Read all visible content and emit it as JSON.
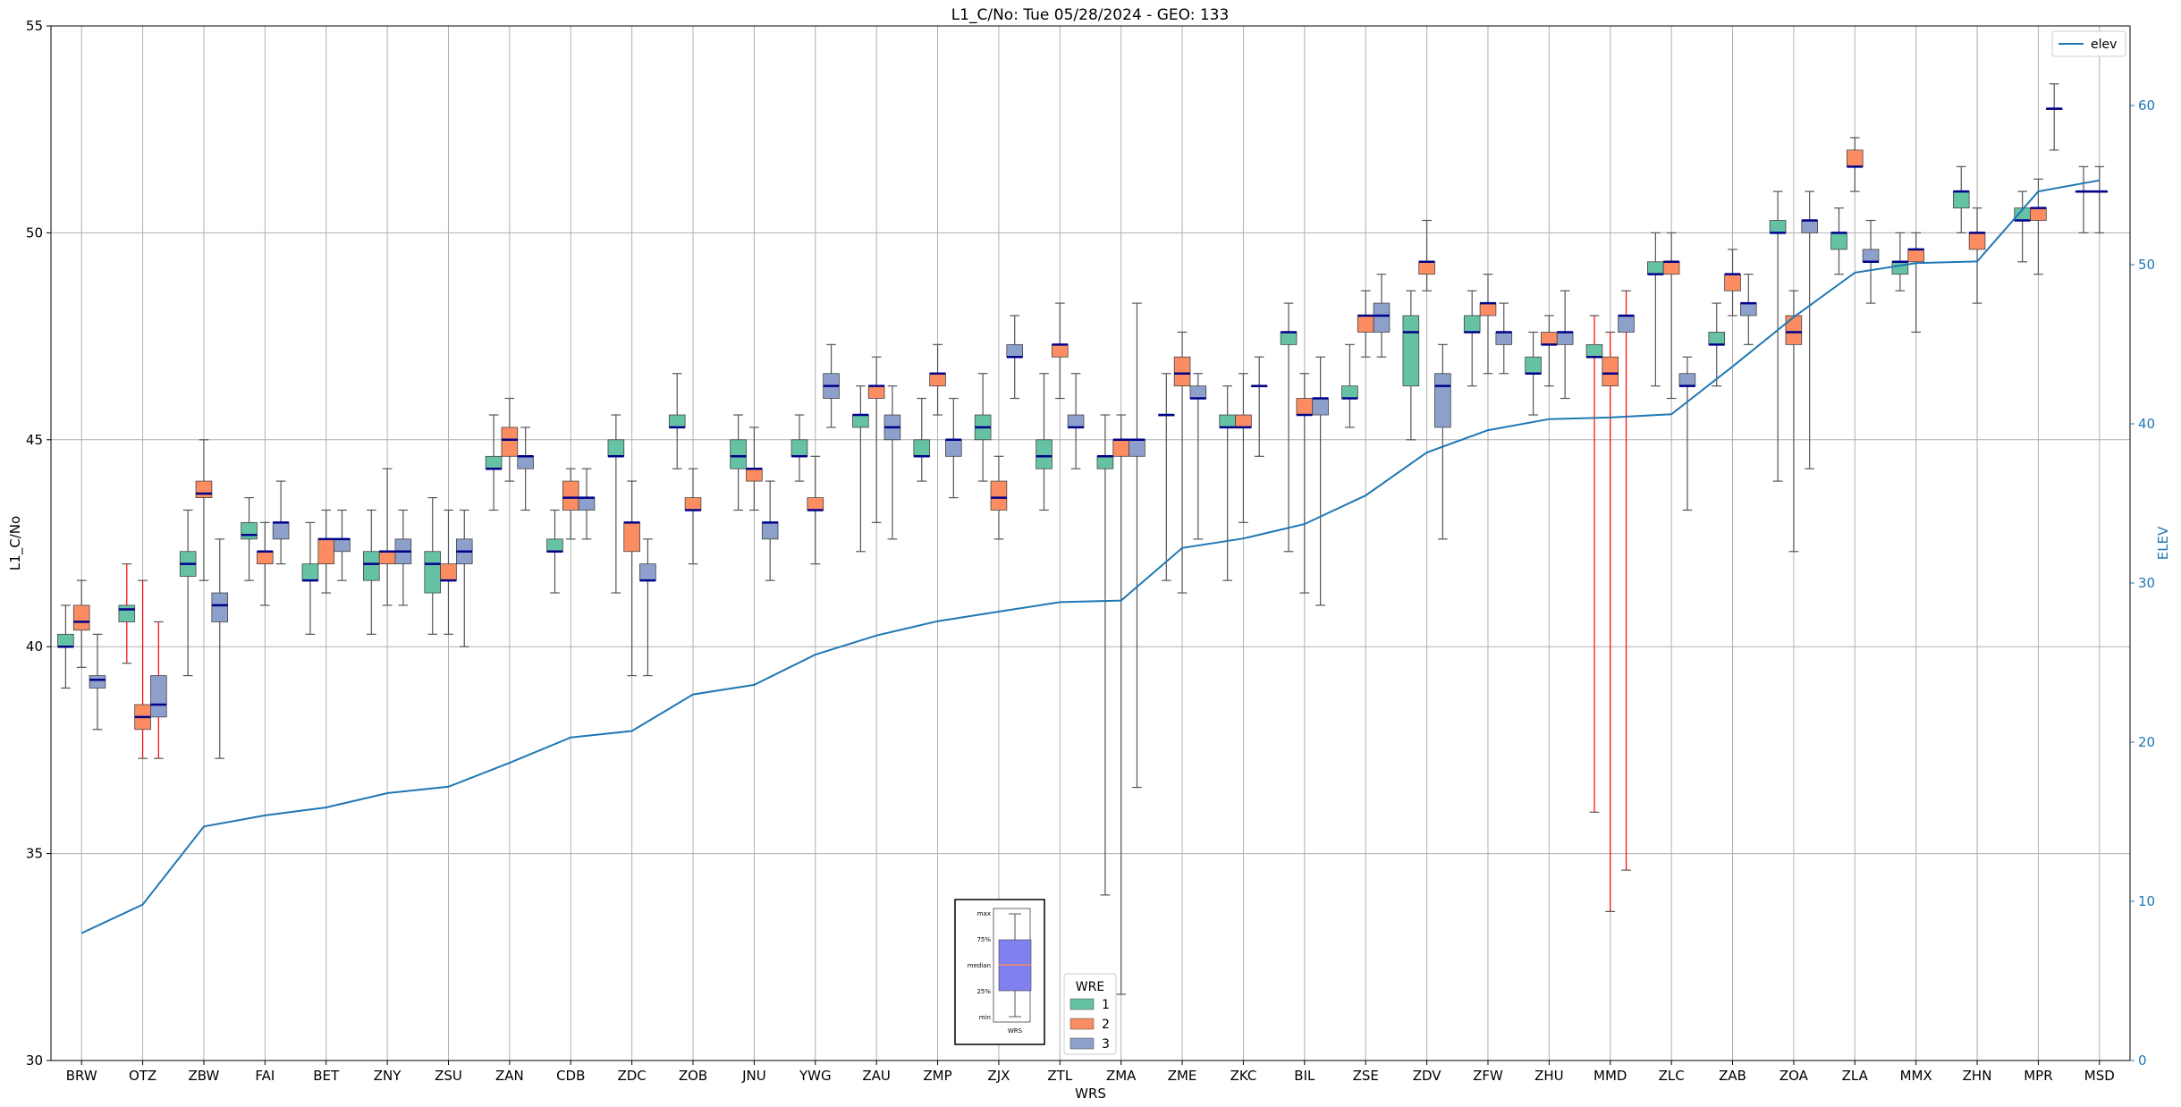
{
  "chart_data": {
    "type": "box",
    "title": "L1_C/No: Tue 05/28/2024 - GEO: 133",
    "xlabel": "WRS",
    "ylabel": "L1_C/No",
    "y2label": "ELEV",
    "ylim": [
      30,
      55
    ],
    "y2lim": [
      0,
      65
    ],
    "yticks": [
      30,
      35,
      40,
      45,
      50,
      55
    ],
    "y2ticks": [
      0,
      10,
      20,
      30,
      40,
      50,
      60
    ],
    "grid": true,
    "legend_placement": "upper-right",
    "categories": [
      "BRW",
      "OTZ",
      "ZBW",
      "FAI",
      "BET",
      "ZNY",
      "ZSU",
      "ZAN",
      "CDB",
      "ZDC",
      "ZOB",
      "JNU",
      "YWG",
      "ZAU",
      "ZMP",
      "ZJX",
      "ZTL",
      "ZMA",
      "ZME",
      "ZKC",
      "BIL",
      "ZSE",
      "ZDV",
      "ZFW",
      "ZHU",
      "MMD",
      "ZLC",
      "ZAB",
      "ZOA",
      "ZLA",
      "MMX",
      "ZHN",
      "MPR",
      "MSD"
    ],
    "wre_legend": {
      "title": "WRE",
      "items": [
        "1",
        "2",
        "3"
      ]
    },
    "colors": {
      "wre1": "#66c2a5",
      "wre2": "#fc8d62",
      "wre3": "#8da0cb",
      "median": "#00008b",
      "elev": "#1f77b4",
      "whisker": "#555555",
      "whisker_red": "#ff0000"
    },
    "elev_series": {
      "name": "elev",
      "values": [
        8,
        9.8,
        14.7,
        15.4,
        15.9,
        16.8,
        17.2,
        18.7,
        20.3,
        20.7,
        23,
        23.6,
        25.5,
        26.7,
        27.6,
        28.2,
        28.8,
        28.9,
        32.2,
        32.8,
        33.7,
        35.5,
        38.2,
        39.6,
        40.3,
        40.4,
        40.6,
        43.6,
        46.7,
        49.5,
        50.1,
        50.2,
        54.6,
        55.3
      ]
    },
    "boxes": [
      {
        "station": "BRW",
        "wre": 1,
        "min": 39,
        "q1": 40,
        "median": 40,
        "q3": 40.3,
        "max": 41
      },
      {
        "station": "BRW",
        "wre": 2,
        "min": 39.5,
        "q1": 40.4,
        "median": 40.6,
        "q3": 41,
        "max": 41.6
      },
      {
        "station": "BRW",
        "wre": 3,
        "min": 38,
        "q1": 39,
        "median": 39.2,
        "q3": 39.3,
        "max": 40.3
      },
      {
        "station": "OTZ",
        "wre": 1,
        "min": 39.6,
        "q1": 40.6,
        "median": 40.9,
        "q3": 41,
        "max": 42,
        "red": true
      },
      {
        "station": "OTZ",
        "wre": 2,
        "min": 37.3,
        "q1": 38,
        "median": 38.3,
        "q3": 38.6,
        "max": 41.6,
        "red": true
      },
      {
        "station": "OTZ",
        "wre": 3,
        "min": 37.3,
        "q1": 38.3,
        "median": 38.6,
        "q3": 39.3,
        "max": 40.6,
        "red": true
      },
      {
        "station": "ZBW",
        "wre": 1,
        "min": 39.3,
        "q1": 41.7,
        "median": 42,
        "q3": 42.3,
        "max": 43.3
      },
      {
        "station": "ZBW",
        "wre": 2,
        "min": 41.6,
        "q1": 43.6,
        "median": 43.7,
        "q3": 44,
        "max": 45
      },
      {
        "station": "ZBW",
        "wre": 3,
        "min": 37.3,
        "q1": 40.6,
        "median": 41,
        "q3": 41.3,
        "max": 42.6
      },
      {
        "station": "FAI",
        "wre": 1,
        "min": 41.6,
        "q1": 42.6,
        "median": 42.7,
        "q3": 43,
        "max": 43.6
      },
      {
        "station": "FAI",
        "wre": 2,
        "min": 41,
        "q1": 42,
        "median": 42.3,
        "q3": 42.3,
        "max": 43
      },
      {
        "station": "FAI",
        "wre": 3,
        "min": 42,
        "q1": 42.6,
        "median": 43,
        "q3": 43,
        "max": 44
      },
      {
        "station": "BET",
        "wre": 1,
        "min": 40.3,
        "q1": 41.6,
        "median": 41.6,
        "q3": 42,
        "max": 43
      },
      {
        "station": "BET",
        "wre": 2,
        "min": 41.3,
        "q1": 42,
        "median": 42.6,
        "q3": 42.6,
        "max": 43.3
      },
      {
        "station": "BET",
        "wre": 3,
        "min": 41.6,
        "q1": 42.3,
        "median": 42.6,
        "q3": 42.6,
        "max": 43.3
      },
      {
        "station": "ZNY",
        "wre": 1,
        "min": 40.3,
        "q1": 41.6,
        "median": 42,
        "q3": 42.3,
        "max": 43.3
      },
      {
        "station": "ZNY",
        "wre": 2,
        "min": 41,
        "q1": 42,
        "median": 42.3,
        "q3": 42.3,
        "max": 44.3
      },
      {
        "station": "ZNY",
        "wre": 3,
        "min": 41,
        "q1": 42,
        "median": 42.3,
        "q3": 42.6,
        "max": 43.3
      },
      {
        "station": "ZSU",
        "wre": 1,
        "min": 40.3,
        "q1": 41.3,
        "median": 42,
        "q3": 42.3,
        "max": 43.6
      },
      {
        "station": "ZSU",
        "wre": 2,
        "min": 40.3,
        "q1": 41.6,
        "median": 41.6,
        "q3": 42,
        "max": 43.3
      },
      {
        "station": "ZSU",
        "wre": 3,
        "min": 40,
        "q1": 42,
        "median": 42.3,
        "q3": 42.6,
        "max": 43.3
      },
      {
        "station": "ZAN",
        "wre": 1,
        "min": 43.3,
        "q1": 44.3,
        "median": 44.3,
        "q3": 44.6,
        "max": 45.6
      },
      {
        "station": "ZAN",
        "wre": 2,
        "min": 44,
        "q1": 44.6,
        "median": 45,
        "q3": 45.3,
        "max": 46
      },
      {
        "station": "ZAN",
        "wre": 3,
        "min": 43.3,
        "q1": 44.3,
        "median": 44.6,
        "q3": 44.6,
        "max": 45.3
      },
      {
        "station": "CDB",
        "wre": 1,
        "min": 41.3,
        "q1": 42.3,
        "median": 42.3,
        "q3": 42.6,
        "max": 43.3
      },
      {
        "station": "CDB",
        "wre": 2,
        "min": 42.6,
        "q1": 43.3,
        "median": 43.6,
        "q3": 44,
        "max": 44.3
      },
      {
        "station": "CDB",
        "wre": 3,
        "min": 42.6,
        "q1": 43.3,
        "median": 43.6,
        "q3": 43.6,
        "max": 44.3
      },
      {
        "station": "ZDC",
        "wre": 1,
        "min": 41.3,
        "q1": 44.6,
        "median": 44.6,
        "q3": 45,
        "max": 45.6
      },
      {
        "station": "ZDC",
        "wre": 2,
        "min": 39.3,
        "q1": 42.3,
        "median": 43,
        "q3": 43,
        "max": 44
      },
      {
        "station": "ZDC",
        "wre": 3,
        "min": 39.3,
        "q1": 41.6,
        "median": 41.6,
        "q3": 42,
        "max": 42.6
      },
      {
        "station": "ZOB",
        "wre": 1,
        "min": 44.3,
        "q1": 45.3,
        "median": 45.3,
        "q3": 45.6,
        "max": 46.6
      },
      {
        "station": "ZOB",
        "wre": 2,
        "min": 42,
        "q1": 43.3,
        "median": 43.3,
        "q3": 43.6,
        "max": 44.3
      },
      {
        "station": "JNU",
        "wre": 1,
        "min": 43.3,
        "q1": 44.3,
        "median": 44.6,
        "q3": 45,
        "max": 45.6
      },
      {
        "station": "JNU",
        "wre": 2,
        "min": 43.3,
        "q1": 44,
        "median": 44.3,
        "q3": 44.3,
        "max": 45.3
      },
      {
        "station": "JNU",
        "wre": 3,
        "min": 41.6,
        "q1": 42.6,
        "median": 43,
        "q3": 43,
        "max": 44
      },
      {
        "station": "YWG",
        "wre": 1,
        "min": 44,
        "q1": 44.6,
        "median": 44.6,
        "q3": 45,
        "max": 45.6
      },
      {
        "station": "YWG",
        "wre": 2,
        "min": 42,
        "q1": 43.3,
        "median": 43.3,
        "q3": 43.6,
        "max": 44.6
      },
      {
        "station": "YWG",
        "wre": 3,
        "min": 45.3,
        "q1": 46,
        "median": 46.3,
        "q3": 46.6,
        "max": 47.3
      },
      {
        "station": "ZAU",
        "wre": 1,
        "min": 42.3,
        "q1": 45.3,
        "median": 45.6,
        "q3": 45.6,
        "max": 46.3
      },
      {
        "station": "ZAU",
        "wre": 2,
        "min": 43,
        "q1": 46,
        "median": 46.3,
        "q3": 46.3,
        "max": 47
      },
      {
        "station": "ZAU",
        "wre": 3,
        "min": 42.6,
        "q1": 45,
        "median": 45.3,
        "q3": 45.6,
        "max": 46.3
      },
      {
        "station": "ZMP",
        "wre": 1,
        "min": 44,
        "q1": 44.6,
        "median": 44.6,
        "q3": 45,
        "max": 46
      },
      {
        "station": "ZMP",
        "wre": 2,
        "min": 45.6,
        "q1": 46.3,
        "median": 46.6,
        "q3": 46.6,
        "max": 47.3
      },
      {
        "station": "ZMP",
        "wre": 3,
        "min": 43.6,
        "q1": 44.6,
        "median": 45,
        "q3": 45,
        "max": 46
      },
      {
        "station": "ZJX",
        "wre": 1,
        "min": 44,
        "q1": 45,
        "median": 45.3,
        "q3": 45.6,
        "max": 46.6
      },
      {
        "station": "ZJX",
        "wre": 2,
        "min": 42.6,
        "q1": 43.3,
        "median": 43.6,
        "q3": 44,
        "max": 44.6
      },
      {
        "station": "ZJX",
        "wre": 3,
        "min": 46,
        "q1": 47,
        "median": 47,
        "q3": 47.3,
        "max": 48
      },
      {
        "station": "ZTL",
        "wre": 1,
        "min": 43.3,
        "q1": 44.3,
        "median": 44.6,
        "q3": 45,
        "max": 46.6
      },
      {
        "station": "ZTL",
        "wre": 2,
        "min": 46,
        "q1": 47,
        "median": 47.3,
        "q3": 47.3,
        "max": 48.3
      },
      {
        "station": "ZTL",
        "wre": 3,
        "min": 44.3,
        "q1": 45.3,
        "median": 45.3,
        "q3": 45.6,
        "max": 46.6
      },
      {
        "station": "ZMA",
        "wre": 1,
        "min": 34,
        "q1": 44.3,
        "median": 44.6,
        "q3": 44.6,
        "max": 45.6
      },
      {
        "station": "ZMA",
        "wre": 2,
        "min": 31.6,
        "q1": 44.6,
        "median": 45,
        "q3": 45,
        "max": 45.6
      },
      {
        "station": "ZMA",
        "wre": 3,
        "min": 36.6,
        "q1": 44.6,
        "median": 45,
        "q3": 45,
        "max": 48.3
      },
      {
        "station": "ZME",
        "wre": 1,
        "min": 41.6,
        "q1": 45.6,
        "median": 45.6,
        "q3": 45.6,
        "max": 46.6
      },
      {
        "station": "ZME",
        "wre": 2,
        "min": 41.3,
        "q1": 46.3,
        "median": 46.6,
        "q3": 47,
        "max": 47.6
      },
      {
        "station": "ZME",
        "wre": 3,
        "min": 42.6,
        "q1": 46,
        "median": 46,
        "q3": 46.3,
        "max": 46.6
      },
      {
        "station": "ZKC",
        "wre": 1,
        "min": 41.6,
        "q1": 45.3,
        "median": 45.3,
        "q3": 45.6,
        "max": 46.3
      },
      {
        "station": "ZKC",
        "wre": 2,
        "min": 43,
        "q1": 45.3,
        "median": 45.3,
        "q3": 45.6,
        "max": 46.6
      },
      {
        "station": "ZKC",
        "wre": 3,
        "min": 44.6,
        "q1": 46.3,
        "median": 46.3,
        "q3": 46.3,
        "max": 47
      },
      {
        "station": "BIL",
        "wre": 1,
        "min": 42.3,
        "q1": 47.3,
        "median": 47.6,
        "q3": 47.6,
        "max": 48.3
      },
      {
        "station": "BIL",
        "wre": 2,
        "min": 41.3,
        "q1": 45.6,
        "median": 45.6,
        "q3": 46,
        "max": 46.6
      },
      {
        "station": "BIL",
        "wre": 3,
        "min": 41,
        "q1": 45.6,
        "median": 46,
        "q3": 46,
        "max": 47
      },
      {
        "station": "ZSE",
        "wre": 1,
        "min": 45.3,
        "q1": 46,
        "median": 46,
        "q3": 46.3,
        "max": 47.3
      },
      {
        "station": "ZSE",
        "wre": 2,
        "min": 47,
        "q1": 47.6,
        "median": 48,
        "q3": 48,
        "max": 48.6
      },
      {
        "station": "ZSE",
        "wre": 3,
        "min": 47,
        "q1": 47.6,
        "median": 48,
        "q3": 48.3,
        "max": 49
      },
      {
        "station": "ZDV",
        "wre": 1,
        "min": 45,
        "q1": 46.3,
        "median": 47.6,
        "q3": 48,
        "max": 48.6
      },
      {
        "station": "ZDV",
        "wre": 2,
        "min": 48.6,
        "q1": 49,
        "median": 49.3,
        "q3": 49.3,
        "max": 50.3
      },
      {
        "station": "ZDV",
        "wre": 3,
        "min": 42.6,
        "q1": 45.3,
        "median": 46.3,
        "q3": 46.6,
        "max": 47.3
      },
      {
        "station": "ZFW",
        "wre": 1,
        "min": 46.3,
        "q1": 47.6,
        "median": 47.6,
        "q3": 48,
        "max": 48.6
      },
      {
        "station": "ZFW",
        "wre": 2,
        "min": 46.6,
        "q1": 48,
        "median": 48.3,
        "q3": 48.3,
        "max": 49
      },
      {
        "station": "ZFW",
        "wre": 3,
        "min": 46.6,
        "q1": 47.3,
        "median": 47.6,
        "q3": 47.6,
        "max": 48.3
      },
      {
        "station": "ZHU",
        "wre": 1,
        "min": 45.6,
        "q1": 46.6,
        "median": 46.6,
        "q3": 47,
        "max": 47.6
      },
      {
        "station": "ZHU",
        "wre": 2,
        "min": 46.3,
        "q1": 47.3,
        "median": 47.3,
        "q3": 47.6,
        "max": 48
      },
      {
        "station": "ZHU",
        "wre": 3,
        "min": 46,
        "q1": 47.3,
        "median": 47.6,
        "q3": 47.6,
        "max": 48.6
      },
      {
        "station": "MMD",
        "wre": 1,
        "min": 36,
        "q1": 47,
        "median": 47,
        "q3": 47.3,
        "max": 48,
        "red": true
      },
      {
        "station": "MMD",
        "wre": 2,
        "min": 33.6,
        "q1": 46.3,
        "median": 46.6,
        "q3": 47,
        "max": 47.6,
        "red": true
      },
      {
        "station": "MMD",
        "wre": 3,
        "min": 34.6,
        "q1": 47.6,
        "median": 48,
        "q3": 48,
        "max": 48.6,
        "red": true
      },
      {
        "station": "ZLC",
        "wre": 1,
        "min": 46.3,
        "q1": 49,
        "median": 49,
        "q3": 49.3,
        "max": 50
      },
      {
        "station": "ZLC",
        "wre": 2,
        "min": 46,
        "q1": 49,
        "median": 49.3,
        "q3": 49.3,
        "max": 50
      },
      {
        "station": "ZLC",
        "wre": 3,
        "min": 43.3,
        "q1": 46.3,
        "median": 46.3,
        "q3": 46.6,
        "max": 47
      },
      {
        "station": "ZAB",
        "wre": 1,
        "min": 46.3,
        "q1": 47.3,
        "median": 47.3,
        "q3": 47.6,
        "max": 48.3
      },
      {
        "station": "ZAB",
        "wre": 2,
        "min": 48,
        "q1": 48.6,
        "median": 49,
        "q3": 49,
        "max": 49.6
      },
      {
        "station": "ZAB",
        "wre": 3,
        "min": 47.3,
        "q1": 48,
        "median": 48.3,
        "q3": 48.3,
        "max": 49
      },
      {
        "station": "ZOA",
        "wre": 1,
        "min": 44,
        "q1": 50,
        "median": 50,
        "q3": 50.3,
        "max": 51
      },
      {
        "station": "ZOA",
        "wre": 2,
        "min": 42.3,
        "q1": 47.3,
        "median": 47.6,
        "q3": 48,
        "max": 48.6
      },
      {
        "station": "ZOA",
        "wre": 3,
        "min": 44.3,
        "q1": 50,
        "median": 50.3,
        "q3": 50.3,
        "max": 51
      },
      {
        "station": "ZLA",
        "wre": 1,
        "min": 49,
        "q1": 49.6,
        "median": 50,
        "q3": 50,
        "max": 50.6
      },
      {
        "station": "ZLA",
        "wre": 2,
        "min": 51,
        "q1": 51.6,
        "median": 51.6,
        "q3": 52,
        "max": 52.3
      },
      {
        "station": "ZLA",
        "wre": 3,
        "min": 48.3,
        "q1": 49.3,
        "median": 49.3,
        "q3": 49.6,
        "max": 50.3
      },
      {
        "station": "MMX",
        "wre": 1,
        "min": 48.6,
        "q1": 49,
        "median": 49.3,
        "q3": 49.3,
        "max": 50
      },
      {
        "station": "MMX",
        "wre": 2,
        "min": 47.6,
        "q1": 49.3,
        "median": 49.6,
        "q3": 49.6,
        "max": 50
      },
      {
        "station": "ZHN",
        "wre": 1,
        "min": 50,
        "q1": 50.6,
        "median": 51,
        "q3": 51,
        "max": 51.6
      },
      {
        "station": "ZHN",
        "wre": 2,
        "min": 48.3,
        "q1": 49.6,
        "median": 50,
        "q3": 50,
        "max": 50.6
      },
      {
        "station": "MPR",
        "wre": 1,
        "min": 49.3,
        "q1": 50.3,
        "median": 50.3,
        "q3": 50.6,
        "max": 51
      },
      {
        "station": "MPR",
        "wre": 2,
        "min": 49,
        "q1": 50.3,
        "median": 50.6,
        "q3": 50.6,
        "max": 51.3
      },
      {
        "station": "MPR",
        "wre": 3,
        "min": 52,
        "q1": 53,
        "median": 53,
        "q3": 53,
        "max": 53.6
      },
      {
        "station": "MSD",
        "wre": 1,
        "min": 50,
        "q1": 51,
        "median": 51,
        "q3": 51,
        "max": 51.6
      },
      {
        "station": "MSD",
        "wre": 2,
        "min": 50,
        "q1": 51,
        "median": 51,
        "q3": 51,
        "max": 51.6
      }
    ],
    "inset_legend": {
      "labels": [
        "max",
        "75%",
        "median",
        "25%",
        "min"
      ],
      "xlabel": "WRS"
    }
  }
}
